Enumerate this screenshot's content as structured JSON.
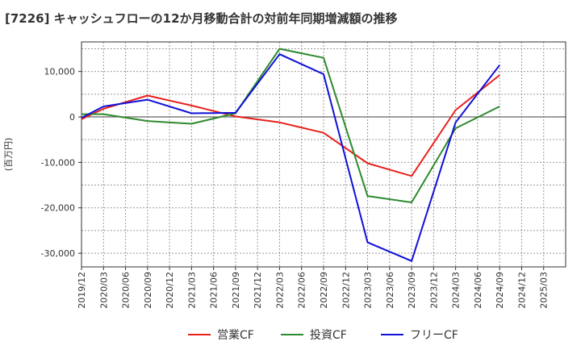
{
  "chart_data": {
    "type": "line",
    "title": "[7226]  キャッシュフローの12か月移動合計の対前年同期増減額の推移",
    "ylabel": "(百万円)",
    "xlabel": "",
    "ylim": [
      -33000,
      16500
    ],
    "yticks": [
      10000,
      0,
      -10000,
      -20000,
      -30000
    ],
    "ytick_labels": [
      "10,000",
      "0",
      "-10,000",
      "-20,000",
      "-30,000"
    ],
    "x_tick_labels": [
      "2019/12",
      "2020/03",
      "2020/06",
      "2020/09",
      "2020/12",
      "2021/03",
      "2021/06",
      "2021/09",
      "2021/12",
      "2022/03",
      "2022/06",
      "2022/09",
      "2022/12",
      "2023/03",
      "2023/06",
      "2023/09",
      "2023/12",
      "2024/03",
      "2024/06",
      "2024/09",
      "2024/12",
      "2025/03"
    ],
    "grid": true,
    "legend_position": "bottom",
    "colors": {
      "grid": "#999999",
      "zero_line": "#666666",
      "axis": "#333333",
      "text": "#333333"
    },
    "series": [
      {
        "name": "営業CF",
        "color": "#e8211c",
        "points": [
          [
            "2019/12",
            -500
          ],
          [
            "2020/03",
            1800
          ],
          [
            "2020/09",
            4700
          ],
          [
            "2021/03",
            2500
          ],
          [
            "2021/09",
            100
          ],
          [
            "2022/03",
            -1200
          ],
          [
            "2022/09",
            -3500
          ],
          [
            "2023/03",
            -10200
          ],
          [
            "2023/09",
            -13000
          ],
          [
            "2024/03",
            1500
          ],
          [
            "2024/09",
            9200
          ]
        ]
      },
      {
        "name": "投資CF",
        "color": "#2d8a2d",
        "points": [
          [
            "2019/12",
            600
          ],
          [
            "2020/03",
            600
          ],
          [
            "2020/09",
            -900
          ],
          [
            "2021/03",
            -1500
          ],
          [
            "2021/09",
            800
          ],
          [
            "2022/03",
            15000
          ],
          [
            "2022/09",
            13000
          ],
          [
            "2023/03",
            -17400
          ],
          [
            "2023/09",
            -18800
          ],
          [
            "2024/03",
            -2500
          ],
          [
            "2024/09",
            2300
          ]
        ]
      },
      {
        "name": "フリーCF",
        "color": "#1010d8",
        "points": [
          [
            "2019/12",
            -200
          ],
          [
            "2020/03",
            2300
          ],
          [
            "2020/09",
            3800
          ],
          [
            "2021/03",
            800
          ],
          [
            "2021/09",
            900
          ],
          [
            "2022/03",
            13800
          ],
          [
            "2022/09",
            9400
          ],
          [
            "2023/03",
            -27600
          ],
          [
            "2023/09",
            -31700
          ],
          [
            "2024/03",
            -1200
          ],
          [
            "2024/09",
            11400
          ]
        ]
      }
    ]
  }
}
